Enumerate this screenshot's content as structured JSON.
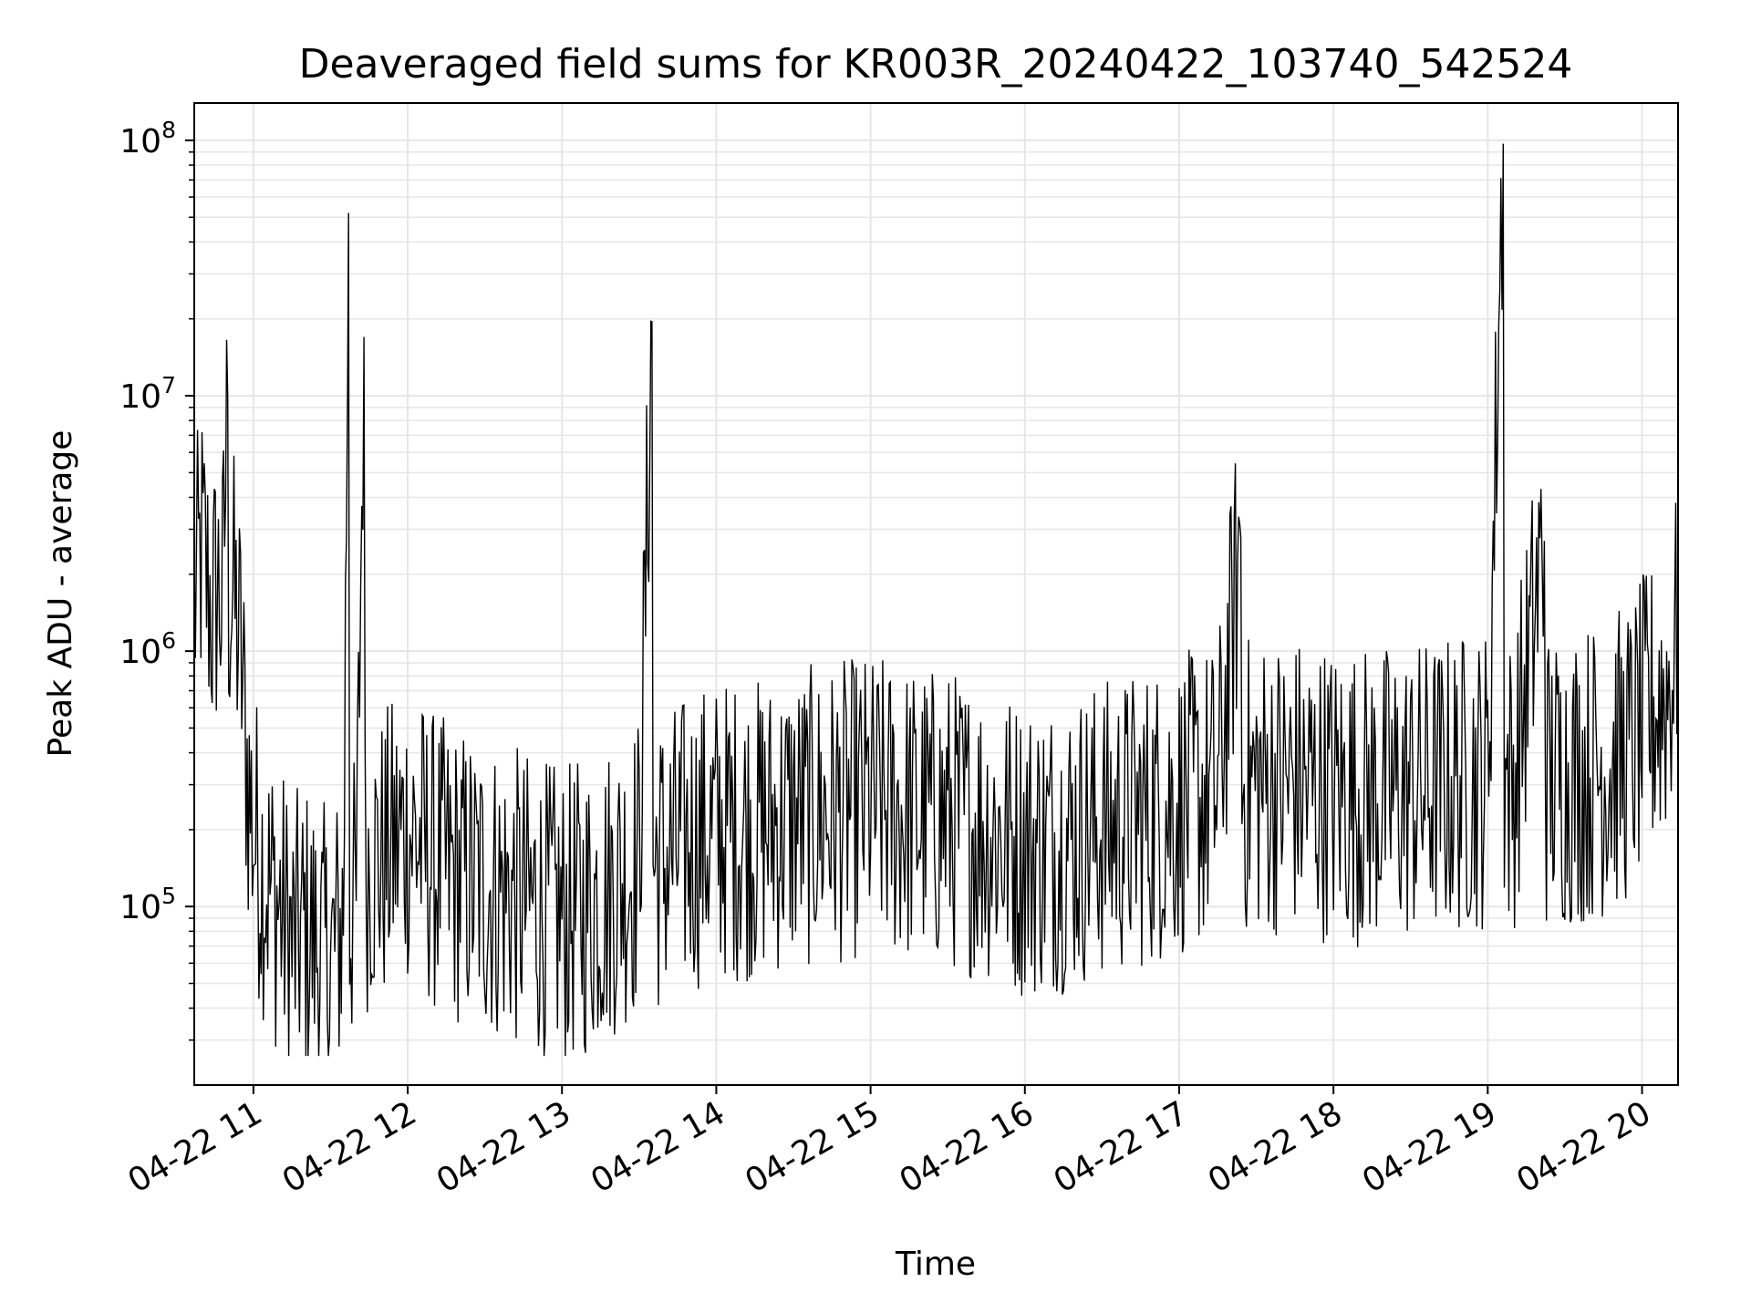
{
  "chart_data": {
    "type": "line",
    "title": "Deaveraged field sums for KR003R_20240422_103740_542524",
    "xlabel": "Time",
    "ylabel": "Peak ADU - average",
    "y_scale": "log",
    "ylim": [
      20000,
      140000000
    ],
    "xlim": [
      "2024-04-22 10:37",
      "2024-04-22 20:14"
    ],
    "x_ticks": [
      {
        "value": "2024-04-22 11:00",
        "label": "04-22 11"
      },
      {
        "value": "2024-04-22 12:00",
        "label": "04-22 12"
      },
      {
        "value": "2024-04-22 13:00",
        "label": "04-22 13"
      },
      {
        "value": "2024-04-22 14:00",
        "label": "04-22 14"
      },
      {
        "value": "2024-04-22 15:00",
        "label": "04-22 15"
      },
      {
        "value": "2024-04-22 16:00",
        "label": "04-22 16"
      },
      {
        "value": "2024-04-22 17:00",
        "label": "04-22 17"
      },
      {
        "value": "2024-04-22 18:00",
        "label": "04-22 18"
      },
      {
        "value": "2024-04-22 19:00",
        "label": "04-22 19"
      },
      {
        "value": "2024-04-22 20:00",
        "label": "04-22 20"
      }
    ],
    "y_ticks": [
      {
        "value": 100000,
        "base": "10",
        "exp": "5"
      },
      {
        "value": 1000000,
        "base": "10",
        "exp": "6"
      },
      {
        "value": 10000000,
        "base": "10",
        "exp": "7"
      },
      {
        "value": 100000000,
        "base": "10",
        "exp": "8"
      }
    ],
    "grid": true,
    "line_color": "#000000",
    "grid_color": "#e6e6e6",
    "series": [
      {
        "x": [
          "2024-04-22 10:37",
          "2024-04-22 10:40",
          "2024-04-22 10:44",
          "2024-04-22 10:46",
          "2024-04-22 10:48",
          "2024-04-22 10:50",
          "2024-04-22 10:52",
          "2024-04-22 10:55",
          "2024-04-22 10:58",
          "2024-04-22 11:00",
          "2024-04-22 11:03",
          "2024-04-22 11:06",
          "2024-04-22 11:10",
          "2024-04-22 11:15",
          "2024-04-22 11:20",
          "2024-04-22 11:25",
          "2024-04-22 11:30",
          "2024-04-22 11:35",
          "2024-04-22 11:37",
          "2024-04-22 11:40",
          "2024-04-22 11:43",
          "2024-04-22 11:50",
          "2024-04-22 12:00",
          "2024-04-22 12:10",
          "2024-04-22 12:20",
          "2024-04-22 12:30",
          "2024-04-22 12:40",
          "2024-04-22 12:50",
          "2024-04-22 13:00",
          "2024-04-22 13:10",
          "2024-04-22 13:20",
          "2024-04-22 13:30",
          "2024-04-22 13:35",
          "2024-04-22 13:40",
          "2024-04-22 13:50",
          "2024-04-22 14:00",
          "2024-04-22 14:15",
          "2024-04-22 14:30",
          "2024-04-22 14:45",
          "2024-04-22 15:00",
          "2024-04-22 15:15",
          "2024-04-22 15:30",
          "2024-04-22 15:45",
          "2024-04-22 15:55",
          "2024-04-22 16:00",
          "2024-04-22 16:15",
          "2024-04-22 16:30",
          "2024-04-22 16:45",
          "2024-04-22 17:00",
          "2024-04-22 17:15",
          "2024-04-22 17:24",
          "2024-04-22 17:30",
          "2024-04-22 17:45",
          "2024-04-22 18:00",
          "2024-04-22 18:15",
          "2024-04-22 18:30",
          "2024-04-22 18:45",
          "2024-04-22 19:00",
          "2024-04-22 19:06",
          "2024-04-22 19:10",
          "2024-04-22 19:22",
          "2024-04-22 19:30",
          "2024-04-22 19:45",
          "2024-04-22 19:55",
          "2024-04-22 20:00",
          "2024-04-22 20:05",
          "2024-04-22 20:10",
          "2024-04-22 20:14"
        ],
        "y": [
          1500000,
          2500000,
          1400000,
          1800000,
          1500000,
          10000000,
          1700000,
          1000000,
          300000,
          200000,
          150000,
          120000,
          100000,
          70000,
          80000,
          70000,
          60000,
          90000,
          52000000,
          100000,
          17000000,
          150000,
          200000,
          150000,
          130000,
          120000,
          110000,
          100000,
          90000,
          100000,
          120000,
          150000,
          19500000,
          150000,
          180000,
          200000,
          200000,
          220000,
          230000,
          250000,
          230000,
          220000,
          200000,
          180000,
          170000,
          180000,
          200000,
          220000,
          250000,
          280000,
          2800000,
          300000,
          300000,
          280000,
          270000,
          280000,
          300000,
          320000,
          97000000,
          300000,
          2700000,
          320000,
          350000,
          400000,
          500000,
          600000,
          700000,
          1200000
        ]
      }
    ]
  }
}
